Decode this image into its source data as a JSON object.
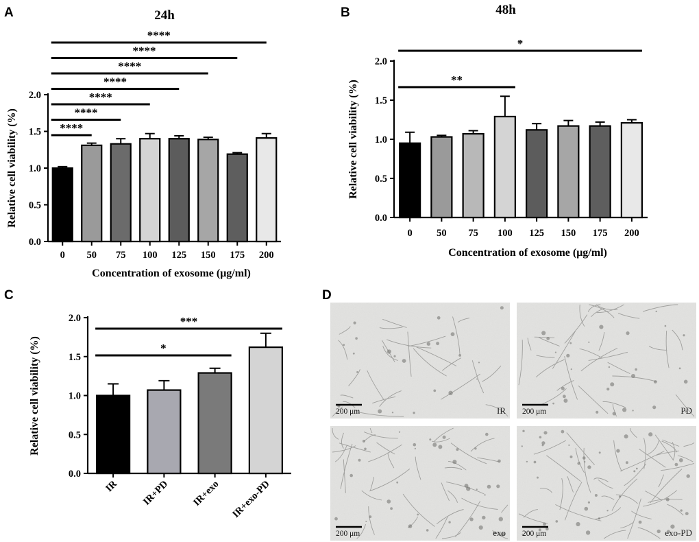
{
  "panels": {
    "A": {
      "label": "A",
      "title": "24h"
    },
    "B": {
      "label": "B",
      "title": "48h"
    },
    "C": {
      "label": "C"
    },
    "D": {
      "label": "D"
    }
  },
  "chart_data": [
    {
      "panel": "A",
      "type": "bar",
      "title": "24h",
      "xlabel": "Concentration of exosome (μg/ml)",
      "ylabel": "Relative cell viability (%)",
      "ylim": [
        0,
        2.0
      ],
      "yticks": [
        "0.0",
        "0.5",
        "1.0",
        "1.5",
        "2.0"
      ],
      "categories": [
        "0",
        "50",
        "75",
        "100",
        "125",
        "150",
        "175",
        "200"
      ],
      "values": [
        1.0,
        1.31,
        1.33,
        1.4,
        1.4,
        1.39,
        1.19,
        1.41
      ],
      "errors": [
        0.02,
        0.03,
        0.07,
        0.07,
        0.04,
        0.03,
        0.02,
        0.06
      ],
      "colors": [
        "#000000",
        "#9a9a9a",
        "#6b6b6b",
        "#d4d4d4",
        "#5c5c5c",
        "#a6a6a6",
        "#5e5e5e",
        "#e8e8e8"
      ],
      "significance": [
        {
          "from": 0,
          "to": 1,
          "label": "****"
        },
        {
          "from": 0,
          "to": 2,
          "label": "****"
        },
        {
          "from": 0,
          "to": 3,
          "label": "****"
        },
        {
          "from": 0,
          "to": 4,
          "label": "****"
        },
        {
          "from": 0,
          "to": 5,
          "label": "****"
        },
        {
          "from": 0,
          "to": 6,
          "label": "****"
        },
        {
          "from": 0,
          "to": 7,
          "label": "****"
        }
      ]
    },
    {
      "panel": "B",
      "type": "bar",
      "title": "48h",
      "xlabel": "Concentration of exosome (μg/ml)",
      "ylabel": "Relative cell viability (%)",
      "ylim": [
        0,
        2.0
      ],
      "yticks": [
        "0.0",
        "0.5",
        "1.0",
        "1.5",
        "2.0"
      ],
      "categories": [
        "0",
        "50",
        "75",
        "100",
        "125",
        "150",
        "175",
        "200"
      ],
      "values": [
        0.95,
        1.03,
        1.07,
        1.29,
        1.12,
        1.17,
        1.17,
        1.21
      ],
      "errors": [
        0.14,
        0.02,
        0.04,
        0.26,
        0.08,
        0.07,
        0.05,
        0.04
      ],
      "colors": [
        "#000000",
        "#9a9a9a",
        "#b8b8b8",
        "#d4d4d4",
        "#5c5c5c",
        "#a6a6a6",
        "#5e5e5e",
        "#e8e8e8"
      ],
      "significance": [
        {
          "from": 0,
          "to": 3,
          "label": "**"
        },
        {
          "from": 0,
          "to": 7,
          "label": "*"
        }
      ]
    },
    {
      "panel": "C",
      "type": "bar",
      "title": "",
      "xlabel": "",
      "ylabel": "Relative cell viability (%)",
      "ylim": [
        0,
        2.0
      ],
      "yticks": [
        "0.0",
        "0.5",
        "1.0",
        "1.5",
        "2.0"
      ],
      "categories": [
        "IR",
        "IR+PD",
        "IR+exo",
        "IR+exo-PD"
      ],
      "values": [
        1.0,
        1.07,
        1.29,
        1.62
      ],
      "errors": [
        0.15,
        0.12,
        0.06,
        0.18
      ],
      "colors": [
        "#000000",
        "#a8a8b0",
        "#7a7a7a",
        "#d4d4d4"
      ],
      "significance": [
        {
          "from": 0,
          "to": 2,
          "label": "*"
        },
        {
          "from": 0,
          "to": 3,
          "label": "***"
        }
      ]
    }
  ],
  "micrographs": [
    {
      "label": "IR",
      "scale": "200 μm"
    },
    {
      "label": "PD",
      "scale": "200 μm"
    },
    {
      "label": "exo",
      "scale": "200 μm"
    },
    {
      "label": "exo-PD",
      "scale": "200 μm"
    }
  ]
}
